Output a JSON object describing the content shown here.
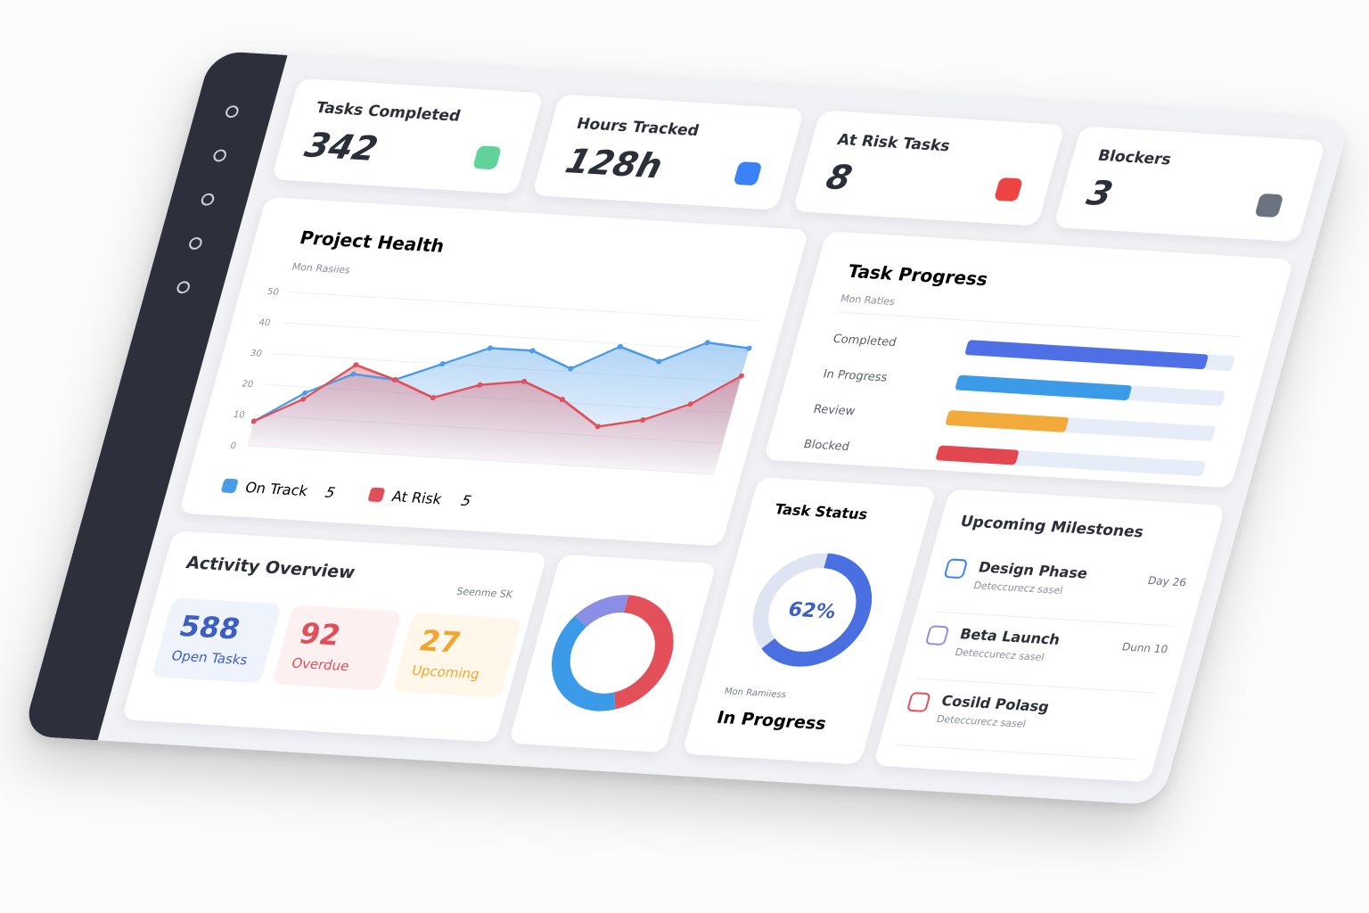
{
  "kpis": [
    {
      "title": "Tasks Completed",
      "value": 342,
      "color": "#5fd39a"
    },
    {
      "title": "Hours Tracked",
      "value": "128h",
      "color": "#3b82f6"
    },
    {
      "title": "At Risk Tasks",
      "value": 8,
      "color": "#ef4444"
    },
    {
      "title": "Blockers",
      "value": 3,
      "color": "#6b7280"
    }
  ],
  "chart_data": [
    {
      "type": "line",
      "title": "Project Health",
      "subtitle": "Mon Rasiies",
      "categories": [
        null,
        null,
        null,
        null,
        null,
        null,
        null,
        null,
        null,
        null,
        null,
        null
      ],
      "ylim": [
        0,
        50
      ],
      "yticks": [
        0,
        10,
        20,
        30,
        40,
        50
      ],
      "grid": true,
      "series": [
        {
          "name": "On Track",
          "count": 5,
          "color": "#4a9be8",
          "values": [
            8,
            18,
            25,
            24,
            30,
            36,
            36,
            31,
            39,
            35,
            42,
            41
          ]
        },
        {
          "name": "At Risk",
          "count": 5,
          "color": "#e0505a",
          "values": [
            8,
            16,
            28,
            24,
            19,
            24,
            26,
            21,
            13,
            16,
            22,
            32
          ]
        }
      ]
    },
    {
      "type": "progress",
      "title": "Task Progress",
      "subtitle": "Mon Ratles",
      "categories": [
        "Completed",
        "In Progress",
        "Review",
        "Blocked"
      ],
      "values": [
        90,
        65,
        45,
        30
      ],
      "colors": [
        "#4f6fe6",
        "#3b9be8",
        "#f2aa3a",
        "#e2474f"
      ]
    },
    {
      "type": "donut",
      "title": "Task Status",
      "subtitle": "Mon Ramiiess",
      "caption": "In Progress",
      "values": [
        62
      ],
      "value_labels": [
        "62%"
      ],
      "colors": [
        "#4a6fe0"
      ]
    },
    {
      "type": "donut",
      "values": [
        45,
        40,
        15
      ],
      "colors": [
        "#e4505a",
        "#3b9be8",
        "#8a8fe6"
      ]
    }
  ],
  "activity": {
    "title": "Activity Overview",
    "note": "Seenme SK",
    "stats": [
      {
        "value": 588,
        "label": "Open Tasks",
        "color": "#3d5fc4",
        "bg": "#eef3fc"
      },
      {
        "value": 92,
        "label": "Overdue",
        "color": "#e0505a",
        "bg": "#fdf0f1"
      },
      {
        "value": 27,
        "label": "Upcoming",
        "color": "#f0a530",
        "bg": "#fff7ea"
      }
    ]
  },
  "milestones": {
    "title": "Upcoming Milestones",
    "items": [
      {
        "name": "Design Phase",
        "detail": "Deteccurecz sasel",
        "date": "Day 26"
      },
      {
        "name": "Beta Launch",
        "detail": "Deteccurecz sasel",
        "date": "Dunn 10"
      },
      {
        "name": "Cosild Polasg",
        "detail": "Deteccurecz sasel"
      }
    ]
  }
}
